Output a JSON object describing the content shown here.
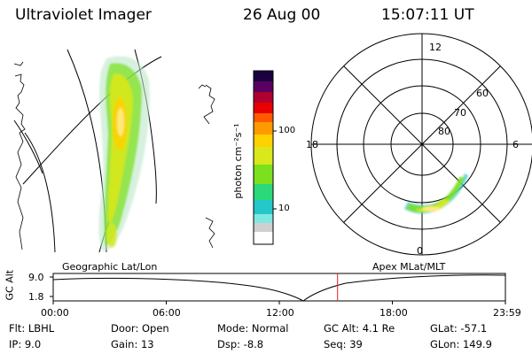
{
  "header": {
    "instrument": "Ultraviolet Imager",
    "date": "26 Aug 00",
    "time": "15:07:11 UT"
  },
  "colorbar": {
    "unit_label": "photon cm⁻²s⁻¹",
    "ticks": [
      "100",
      "10"
    ],
    "scale": "log",
    "colors": [
      "#ffffff",
      "#cfcfcf",
      "#7fe8e0",
      "#24c8c8",
      "#2bd87a",
      "#7de01e",
      "#d8e81c",
      "#ffd100",
      "#ff9a00",
      "#ff5a00",
      "#e80000",
      "#b00030",
      "#5a0060",
      "#1a0040"
    ]
  },
  "geographic_panel": {
    "label": "Geographic Lat/Lon"
  },
  "polar_panel": {
    "label": "Apex MLat/MLT",
    "mlt_labels": [
      "12",
      "18",
      "6",
      "0"
    ],
    "lat_labels": [
      "60",
      "70",
      "80"
    ]
  },
  "altitude_plot": {
    "ylabel": "GC Alt",
    "yticks": [
      "9.0",
      "1.8"
    ],
    "xticks": [
      "00:00",
      "06:00",
      "12:00",
      "18:00",
      "23:59"
    ],
    "marker_time": "15:07",
    "marker_color": "#e02020"
  },
  "info": {
    "flt": "Flt: LBHL",
    "ip": "IP:  9.0",
    "door": "Door: Open",
    "gain": "Gain: 13",
    "mode": "Mode: Normal",
    "dsp": "Dsp:   -8.8",
    "gc_alt": "GC Alt: 4.1 Re",
    "seq": "Seq: 39",
    "glat": "GLat: -57.1",
    "glon": "GLon: 149.9"
  }
}
